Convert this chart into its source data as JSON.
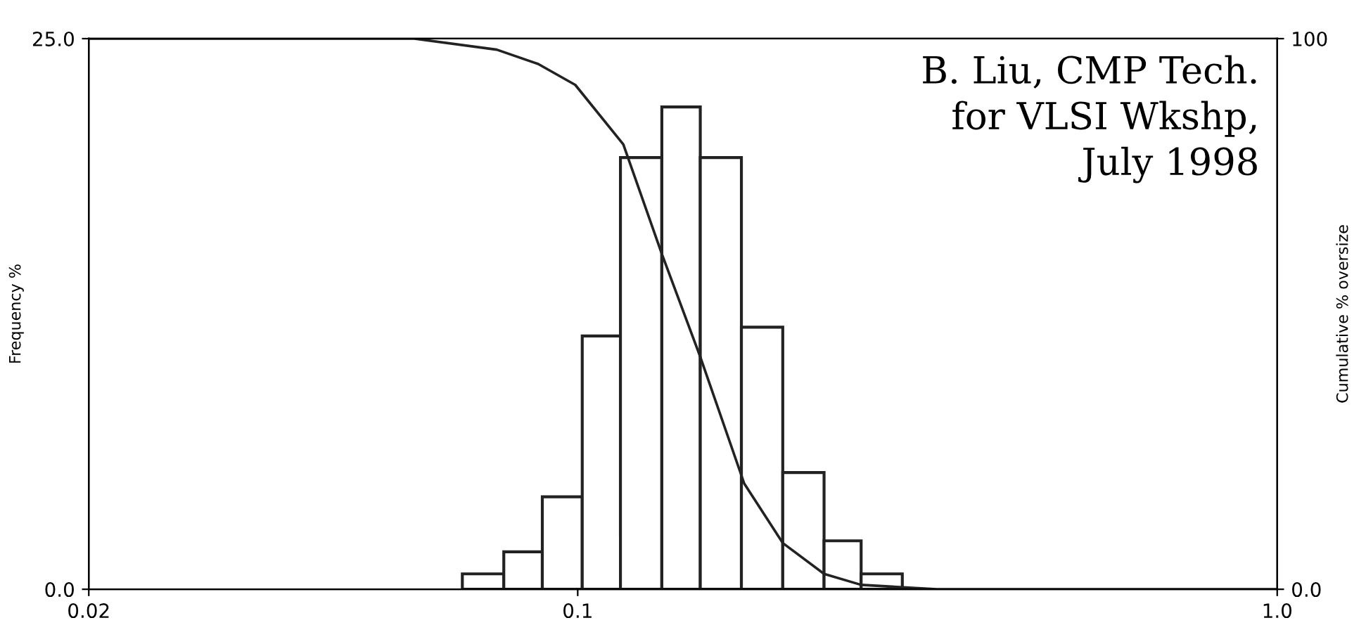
{
  "chart_data": {
    "type": "histogram",
    "ylabel": "Frequency %",
    "y2label": "Cumulative % oversize",
    "annotations": [
      "B. Liu, CMP Tech.\nfor VLSI Wkshp,\nJuly 1998"
    ],
    "bins": [
      0.0684,
      0.0784,
      0.089,
      0.1015,
      0.1151,
      0.1319,
      0.1497,
      0.1714,
      0.1964,
      0.225,
      0.2542,
      0.2911
    ],
    "values": [
      0.7,
      1.7,
      4.2,
      11.5,
      19.6,
      21.9,
      19.6,
      11.9,
      5.3,
      2.2,
      0.7
    ],
    "color": "#ffffff",
    "series": [
      {
        "type": "line",
        "axis": "y2",
        "color": "#222222",
        "x": [
          0.02,
          0.0584,
          0.0766,
          0.0878,
          0.0992,
          0.1162,
          0.1319,
          0.1497,
          0.173,
          0.1964,
          0.225,
          0.2542,
          0.326,
          1.0
        ],
        "values": [
          100,
          100,
          98,
          95.4,
          91.6,
          80.8,
          60.9,
          42.2,
          19.2,
          8.4,
          2.8,
          0.8,
          0,
          0
        ]
      }
    ],
    "log": "x",
    "xlim": [
      0.02,
      1.0
    ],
    "xticks": [
      0.02,
      0.1,
      {
        "value": 1.0,
        "label": "1.0"
      }
    ],
    "ylim": [
      0,
      25
    ],
    "yticks": [
      {
        "value": 0,
        "label": "0.0"
      },
      {
        "value": 25,
        "label": "25.0"
      }
    ],
    "y2lim": [
      0,
      100
    ],
    "y2ticks": [
      {
        "value": 0,
        "label": "0.0"
      },
      100
    ],
    "grid": false,
    "legend": false
  }
}
